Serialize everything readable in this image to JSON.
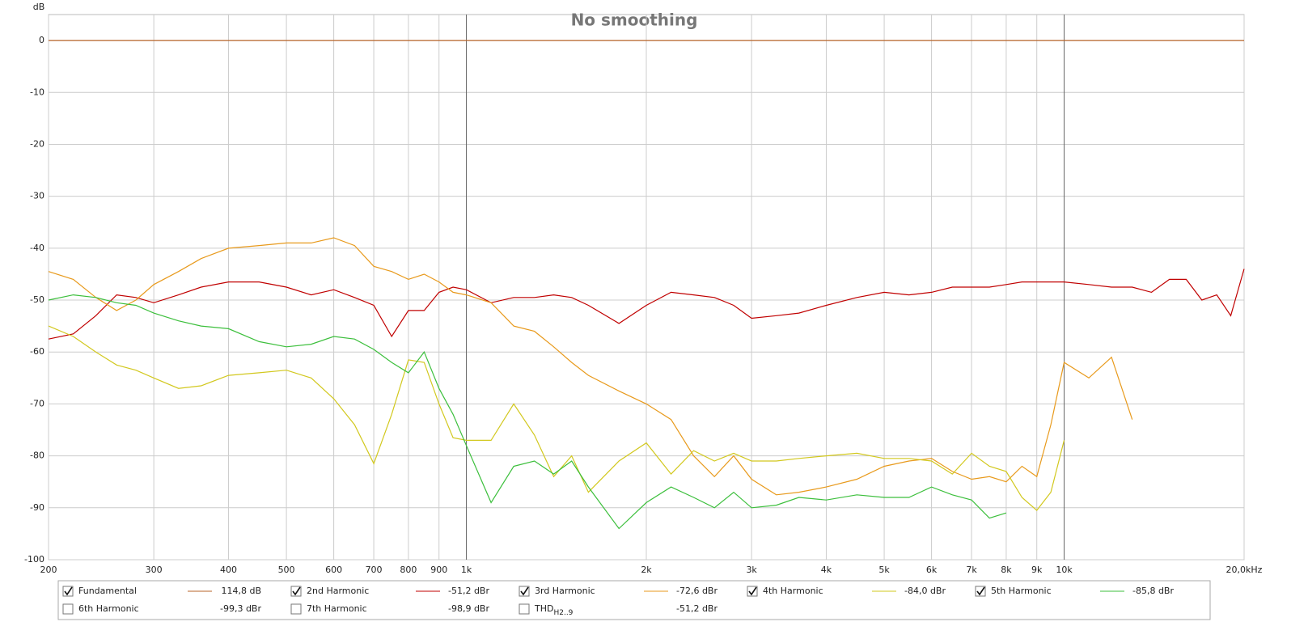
{
  "chart_data": {
    "type": "line",
    "title": "No smoothing",
    "ylabel": "dB",
    "log_x": true,
    "grid": true,
    "xlim": [
      200,
      20000
    ],
    "ylim": [
      -100,
      5
    ],
    "xticks": [
      200,
      300,
      400,
      500,
      600,
      700,
      800,
      900,
      {
        "value": 1000,
        "label": "1k"
      },
      {
        "value": 2000,
        "label": "2k"
      },
      {
        "value": 3000,
        "label": "3k"
      },
      {
        "value": 4000,
        "label": "4k"
      },
      {
        "value": 5000,
        "label": "5k"
      },
      {
        "value": 6000,
        "label": "6k"
      },
      {
        "value": 7000,
        "label": "7k"
      },
      {
        "value": 8000,
        "label": "8k"
      },
      {
        "value": 9000,
        "label": "9k"
      },
      {
        "value": 10000,
        "label": "10k"
      },
      {
        "value": 20000,
        "label": "20,0kHz"
      }
    ],
    "yticks": [
      0,
      -10,
      -20,
      -30,
      -40,
      -50,
      -60,
      -70,
      -80,
      -90,
      -100
    ],
    "x": [
      200,
      220,
      240,
      260,
      280,
      300,
      330,
      360,
      400,
      450,
      500,
      550,
      600,
      650,
      700,
      750,
      800,
      850,
      900,
      950,
      1000,
      1100,
      1200,
      1300,
      1400,
      1500,
      1600,
      1800,
      2000,
      2200,
      2400,
      2600,
      2800,
      3000,
      3300,
      3600,
      4000,
      4500,
      5000,
      5500,
      6000,
      6500,
      7000,
      7500,
      8000,
      8500,
      9000,
      9500,
      10000,
      11000,
      12000,
      13000,
      14000,
      15000,
      16000,
      17000,
      18000,
      19000,
      20000
    ],
    "series": [
      {
        "name": "Fundamental",
        "color": "#b8652a",
        "checked": true,
        "readout": "114,8 dB",
        "values": [
          0,
          0,
          0,
          0,
          0,
          0,
          0,
          0,
          0,
          0,
          0,
          0,
          0,
          0,
          0,
          0,
          0,
          0,
          0,
          0,
          0,
          0,
          0,
          0,
          0,
          0,
          0,
          0,
          0,
          0,
          0,
          0,
          0,
          0,
          0,
          0,
          0,
          0,
          0,
          0,
          0,
          0,
          0,
          0,
          0,
          0,
          0,
          0,
          0,
          0,
          0,
          0,
          0,
          0,
          0,
          0,
          0,
          0,
          0
        ]
      },
      {
        "name": "2nd Harmonic",
        "color": "#c00000",
        "checked": true,
        "readout": "-51,2 dBr",
        "values": [
          -57.5,
          -56.5,
          -53,
          -49,
          -49.5,
          -50.5,
          -49,
          -47.5,
          -46.5,
          -46.5,
          -47.5,
          -49,
          -48,
          -49.5,
          -51,
          -57,
          -52,
          -52,
          -48.5,
          -47.5,
          -48,
          -50.5,
          -49.5,
          -49.5,
          -49,
          -49.5,
          -51,
          -54.5,
          -51,
          -48.5,
          -49,
          -49.5,
          -51,
          -53.5,
          -53,
          -52.5,
          -51,
          -49.5,
          -48.5,
          -49,
          -48.5,
          -47.5,
          -47.5,
          -47.5,
          -47,
          -46.5,
          -46.5,
          -46.5,
          -46.5,
          -47,
          -47.5,
          -47.5,
          -48.5,
          -46,
          -46,
          -50,
          -49,
          -53,
          -44
        ]
      },
      {
        "name": "3rd Harmonic",
        "color": "#e89a1c",
        "checked": true,
        "readout": "-72,6 dBr",
        "values": [
          -44.5,
          -46,
          -49.5,
          -52,
          -50,
          -47,
          -44.5,
          -42,
          -40,
          -39.5,
          -39,
          -39,
          -38,
          -39.5,
          -43.5,
          -44.5,
          -46,
          -45,
          -46.5,
          -48.5,
          -49,
          -50.5,
          -55,
          -56,
          -59,
          -62,
          -64.5,
          -67.5,
          -70,
          -73,
          -80,
          -84,
          -80,
          -84.5,
          -87.5,
          -87,
          -86,
          -84.5,
          -82,
          -81,
          -80.5,
          -83,
          -84.5,
          -84,
          -85,
          -82,
          -84,
          -74,
          -62,
          -65,
          -61,
          -73,
          null,
          null,
          null,
          null,
          null,
          null,
          null
        ]
      },
      {
        "name": "4th Harmonic",
        "color": "#d2c81e",
        "checked": true,
        "readout": "-84,0 dBr",
        "values": [
          -55,
          -57,
          -60,
          -62.5,
          -63.5,
          -65,
          -67,
          -66.5,
          -64.5,
          -64,
          -63.5,
          -65,
          -69,
          -74,
          -81.5,
          -72,
          -61.5,
          -62,
          -70,
          -76.5,
          -77,
          -77,
          -70,
          -76,
          -84,
          -80,
          -87,
          -81,
          -77.5,
          -83.5,
          -79,
          -81,
          -79.5,
          -81,
          -81,
          -80.5,
          -80,
          -79.5,
          -80.5,
          -80.5,
          -81,
          -83.5,
          -79.5,
          -82,
          -83,
          -88,
          -90.5,
          -87,
          -77,
          null,
          null,
          null,
          null,
          null,
          null,
          null,
          null,
          null,
          null
        ]
      },
      {
        "name": "5th Harmonic",
        "color": "#3cbf3c",
        "checked": true,
        "readout": "-85,8 dBr",
        "values": [
          -50,
          -49,
          -49.5,
          -50.5,
          -51,
          -52.5,
          -54,
          -55,
          -55.5,
          -58,
          -59,
          -58.5,
          -57,
          -57.5,
          -59.5,
          -62,
          -64,
          -60,
          -67,
          -72,
          -78,
          -89,
          -82,
          -81,
          -83.5,
          -81,
          -86,
          -94,
          -89,
          -86,
          -88,
          -90,
          -87,
          -90,
          -89.5,
          -88,
          -88.5,
          -87.5,
          -88,
          -88,
          -86,
          -87.5,
          -88.5,
          -92,
          -91,
          null,
          null,
          null,
          null,
          null,
          null,
          null,
          null,
          null,
          null,
          null,
          null,
          null,
          null
        ]
      }
    ],
    "legend_extra": [
      {
        "name": "6th Harmonic",
        "color": "#4a8ae8",
        "checked": false,
        "readout": "-99,3 dBr"
      },
      {
        "name": "7th Harmonic",
        "color": "#e070e0",
        "checked": false,
        "readout": "-98,9 dBr"
      },
      {
        "name": "THD",
        "subscript": "H2..9",
        "color": "#333333",
        "checked": false,
        "readout": "-51,2 dBr"
      }
    ]
  }
}
